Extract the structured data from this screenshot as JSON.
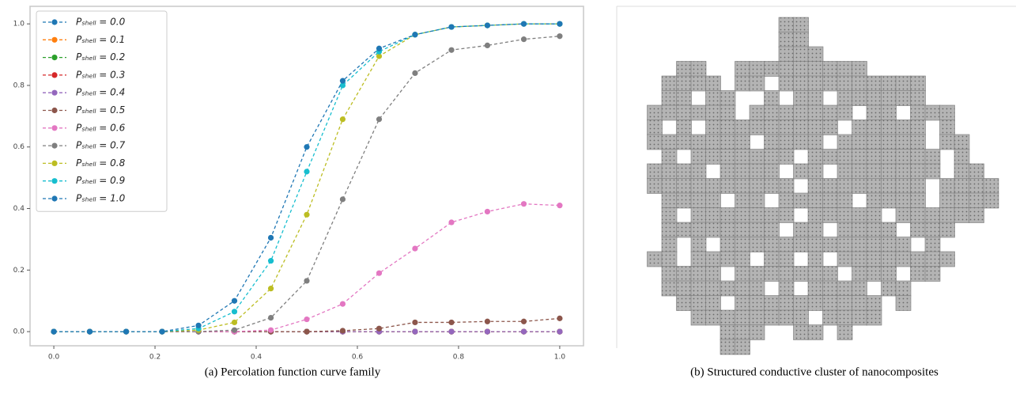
{
  "chart_data": {
    "type": "line",
    "caption": "(a) Percolation function curve family",
    "x": [
      0,
      0.071,
      0.143,
      0.214,
      0.286,
      0.357,
      0.429,
      0.5,
      0.571,
      0.643,
      0.714,
      0.786,
      0.857,
      0.929,
      1
    ],
    "xlim": [
      -0.047,
      1.047
    ],
    "ylim": [
      -0.046,
      1.057
    ],
    "xticks": [
      {
        "value": 0,
        "label": "0.0"
      },
      0.2,
      0.4,
      0.6,
      0.8,
      {
        "value": 1,
        "label": "1.0"
      }
    ],
    "yticks": [
      {
        "value": 0,
        "label": "0.0"
      },
      0.2,
      0.4,
      0.6,
      0.8,
      {
        "value": 1,
        "label": "1.0"
      }
    ],
    "grid": false,
    "legend": "upper left",
    "series": [
      {
        "name": "Pₛₕₑₗₗ = 0.0",
        "color": "#1f77b4",
        "values": [
          0,
          0,
          0,
          0,
          0,
          0,
          0,
          0,
          0,
          0,
          0,
          0,
          0,
          0,
          0
        ]
      },
      {
        "name": "Pₛₕₑₗₗ = 0.1",
        "color": "#ff7f0e",
        "values": [
          0,
          0,
          0,
          0,
          0,
          0,
          0,
          0,
          0,
          0,
          0,
          0,
          0,
          0,
          0
        ]
      },
      {
        "name": "Pₛₕₑₗₗ = 0.2",
        "color": "#2ca02c",
        "values": [
          0,
          0,
          0,
          0,
          0,
          0,
          0,
          0,
          0,
          0,
          0,
          0,
          0,
          0,
          0
        ]
      },
      {
        "name": "Pₛₕₑₗₗ = 0.3",
        "color": "#d62728",
        "values": [
          0,
          0,
          0,
          0,
          0,
          0,
          0,
          0,
          0,
          0,
          0,
          0,
          0,
          0,
          0
        ]
      },
      {
        "name": "Pₛₕₑₗₗ = 0.4",
        "color": "#9467bd",
        "values": [
          0,
          0,
          0,
          0,
          0,
          0,
          0,
          0,
          0,
          0,
          0,
          0,
          0,
          0,
          0
        ]
      },
      {
        "name": "Pₛₕₑₗₗ = 0.5",
        "color": "#8c564b",
        "values": [
          0,
          0,
          0,
          0,
          0,
          0,
          0,
          0,
          0.003,
          0.01,
          0.03,
          0.03,
          0.033,
          0.033,
          0.043
        ]
      },
      {
        "name": "Pₛₕₑₗₗ = 0.6",
        "color": "#e377c2",
        "values": [
          0,
          0,
          0,
          0,
          0,
          0,
          0.005,
          0.04,
          0.09,
          0.19,
          0.27,
          0.355,
          0.39,
          0.415,
          0.41
        ]
      },
      {
        "name": "Pₛₕₑₗₗ = 0.7",
        "color": "#7f7f7f",
        "values": [
          0,
          0,
          0,
          0,
          0,
          0.005,
          0.045,
          0.165,
          0.43,
          0.69,
          0.84,
          0.915,
          0.93,
          0.95,
          0.96
        ]
      },
      {
        "name": "Pₛₕₑₗₗ = 0.8",
        "color": "#bcbd22",
        "values": [
          0,
          0,
          0,
          0,
          0.005,
          0.03,
          0.14,
          0.38,
          0.69,
          0.895,
          0.965,
          0.99,
          0.995,
          1,
          1
        ]
      },
      {
        "name": "Pₛₕₑₗₗ = 0.9",
        "color": "#17becf",
        "values": [
          0,
          0,
          0,
          0,
          0.01,
          0.065,
          0.23,
          0.52,
          0.8,
          0.91,
          0.965,
          0.99,
          0.995,
          1,
          1
        ]
      },
      {
        "name": "Pₛₕₑₗₗ = 1.0",
        "color": "#1f77b4",
        "values": [
          0,
          0,
          0,
          0,
          0.02,
          0.1,
          0.305,
          0.6,
          0.815,
          0.92,
          0.965,
          0.99,
          0.995,
          1,
          1
        ]
      }
    ]
  },
  "figure_b": {
    "caption": "(b) Structured conductive cluster of nanocomposites"
  }
}
